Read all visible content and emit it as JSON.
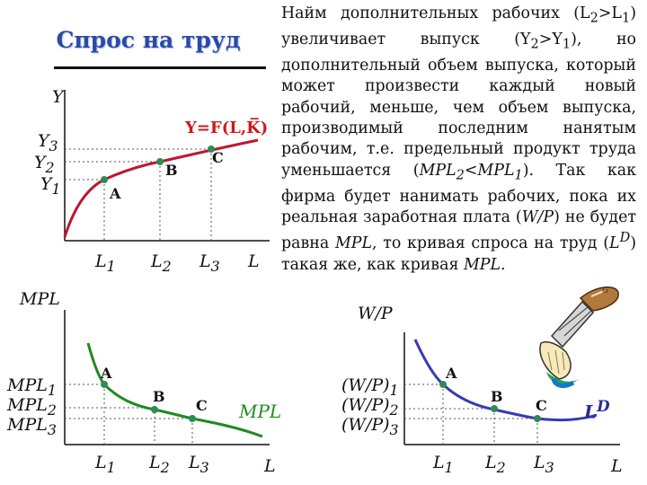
{
  "title": "Спрос на труд",
  "paragraph_html": "Найм дополнительных рабочих (L<sub>2</sub>&gt;L<sub>1</sub>) увеличивает выпуск (Y<sub>2</sub>&gt;Y<sub>1</sub>), но дополнительный объем выпуска, который может произвести каждый новый рабочий, меньше, чем объем выпуска, производимый последним нанятым рабочим, т.е. предельный продукт труда уменьшается (<i>MPL<sub>2</sub>&lt;MPL<sub>1</sub></i>). Так как фирма будет нанимать рабочих, пока их реальная заработная плата (<i>W/P</i>) не будет равна <i>MPL</i>, то кривая спроса на труд (<i>L<sup>D</sup></i>) такая же, как кривая <i>MPL</i>.",
  "production": {
    "y_axis": "Y",
    "x_axis": "L",
    "y_ticks_html": [
      "Y<sub>3</sub>",
      "Y<sub>2</sub>",
      "Y<sub>1</sub>"
    ],
    "x_ticks_html": [
      "L<sub>1</sub>",
      "L<sub>2</sub>",
      "L<sub>3</sub>"
    ],
    "curve_label_html": "Y=F(L,K&#773;)",
    "points": [
      "A",
      "B",
      "C"
    ]
  },
  "mpl": {
    "y_axis": "MPL",
    "x_axis": "L",
    "y_ticks_html": [
      "MPL<sub>1</sub>",
      "MPL<sub>2</sub>",
      "MPL<sub>3</sub>"
    ],
    "x_ticks_html": [
      "L<sub>1</sub>",
      "L<sub>2</sub>",
      "L<sub>3</sub>"
    ],
    "curve_label": "MPL",
    "points": [
      "A",
      "B",
      "C"
    ]
  },
  "labor_demand": {
    "y_axis": "W/P",
    "x_axis": "L",
    "y_ticks_html": [
      "(W/P)<sub>1</sub>",
      "(W/P)<sub>2</sub>",
      "(W/P)<sub>3</sub>"
    ],
    "x_ticks_html": [
      "L<sub>1</sub>",
      "L<sub>2</sub>",
      "L<sub>3</sub>"
    ],
    "curve_label_html": "L<sup>D</sup>",
    "points": [
      "A",
      "B",
      "C"
    ]
  },
  "colors": {
    "title": "#2b4aa8",
    "production_curve": "#c0162d",
    "mpl_curve": "#1f8a1f",
    "demand_curve": "#3a3ab0",
    "point": "#2e8b57"
  },
  "icons": [
    "paintbrush-icon"
  ]
}
